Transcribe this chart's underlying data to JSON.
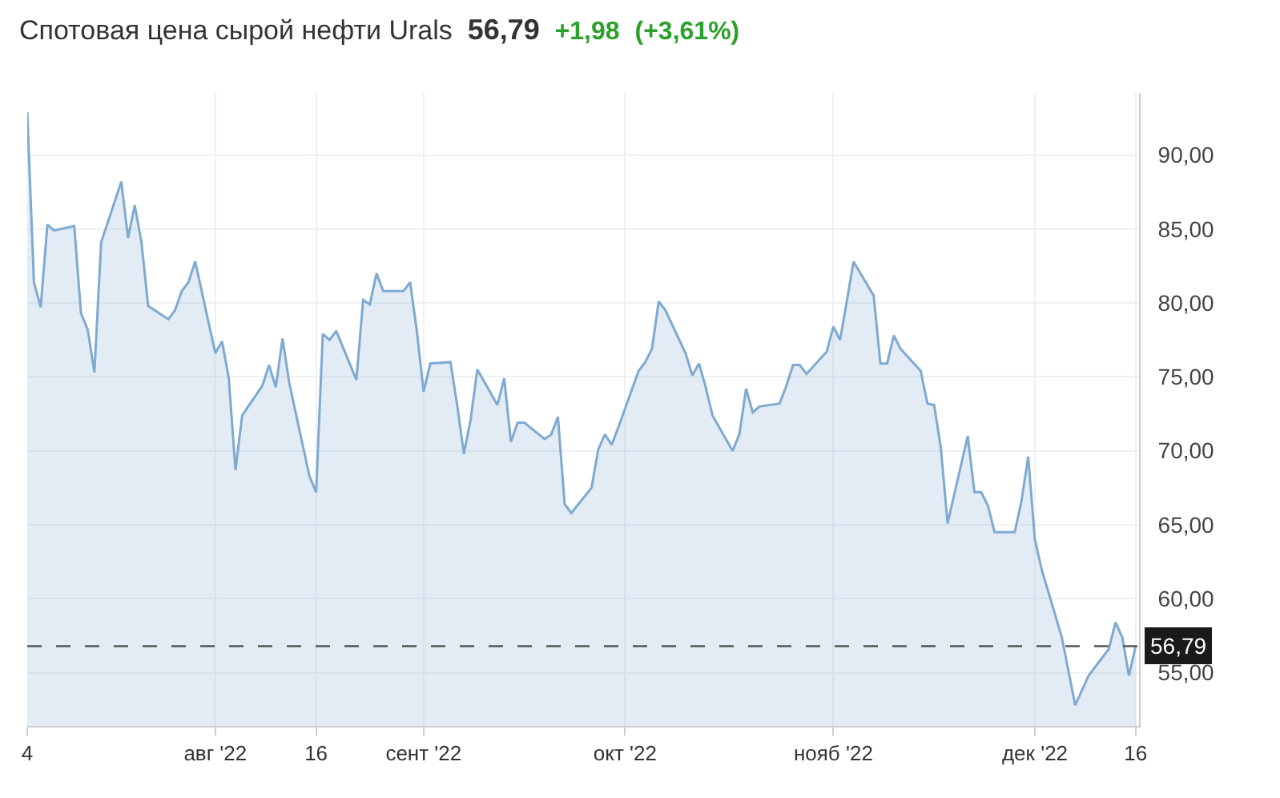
{
  "chart_data": {
    "type": "area",
    "title": "Спотовая цена сырой нефти Urals",
    "annotations": [
      "56,79",
      "+1,98",
      "(+3,61%)"
    ],
    "x": [
      "2022-07-04",
      "2022-07-05",
      "2022-07-06",
      "2022-07-07",
      "2022-07-08",
      "2022-07-11",
      "2022-07-12",
      "2022-07-13",
      "2022-07-14",
      "2022-07-15",
      "2022-07-18",
      "2022-07-19",
      "2022-07-20",
      "2022-07-21",
      "2022-07-22",
      "2022-07-25",
      "2022-07-26",
      "2022-07-27",
      "2022-07-28",
      "2022-07-29",
      "2022-08-01",
      "2022-08-02",
      "2022-08-03",
      "2022-08-04",
      "2022-08-05",
      "2022-08-08",
      "2022-08-09",
      "2022-08-10",
      "2022-08-11",
      "2022-08-12",
      "2022-08-15",
      "2022-08-16",
      "2022-08-17",
      "2022-08-18",
      "2022-08-19",
      "2022-08-22",
      "2022-08-23",
      "2022-08-24",
      "2022-08-25",
      "2022-08-26",
      "2022-08-29",
      "2022-08-30",
      "2022-08-31",
      "2022-09-01",
      "2022-09-02",
      "2022-09-05",
      "2022-09-06",
      "2022-09-07",
      "2022-09-08",
      "2022-09-09",
      "2022-09-12",
      "2022-09-13",
      "2022-09-14",
      "2022-09-15",
      "2022-09-16",
      "2022-09-19",
      "2022-09-20",
      "2022-09-21",
      "2022-09-22",
      "2022-09-23",
      "2022-09-26",
      "2022-09-27",
      "2022-09-28",
      "2022-09-29",
      "2022-09-30",
      "2022-10-03",
      "2022-10-04",
      "2022-10-05",
      "2022-10-06",
      "2022-10-07",
      "2022-10-10",
      "2022-10-11",
      "2022-10-12",
      "2022-10-13",
      "2022-10-14",
      "2022-10-17",
      "2022-10-18",
      "2022-10-19",
      "2022-10-20",
      "2022-10-21",
      "2022-10-24",
      "2022-10-25",
      "2022-10-26",
      "2022-10-27",
      "2022-10-28",
      "2022-10-31",
      "2022-11-01",
      "2022-11-02",
      "2022-11-03",
      "2022-11-04",
      "2022-11-07",
      "2022-11-08",
      "2022-11-09",
      "2022-11-10",
      "2022-11-11",
      "2022-11-14",
      "2022-11-15",
      "2022-11-16",
      "2022-11-17",
      "2022-11-18",
      "2022-11-21",
      "2022-11-22",
      "2022-11-23",
      "2022-11-24",
      "2022-11-25",
      "2022-11-28",
      "2022-11-29",
      "2022-11-30",
      "2022-12-01",
      "2022-12-02",
      "2022-12-05",
      "2022-12-06",
      "2022-12-07",
      "2022-12-08",
      "2022-12-09",
      "2022-12-12",
      "2022-12-13",
      "2022-12-14",
      "2022-12-15",
      "2022-12-16"
    ],
    "series": [
      {
        "color": "#7eaad2",
        "values": [
          92.9,
          81.4,
          79.7,
          85.3,
          84.9,
          85.2,
          79.3,
          78.2,
          75.3,
          84.1,
          88.2,
          84.4,
          86.6,
          84.1,
          79.8,
          78.9,
          79.5,
          80.8,
          81.4,
          82.8,
          76.6,
          77.4,
          74.9,
          68.7,
          72.4,
          74.4,
          75.8,
          74.3,
          77.6,
          74.6,
          68.3,
          67.2,
          77.9,
          77.5,
          78.1,
          74.8,
          80.2,
          79.9,
          82.0,
          80.8,
          80.8,
          81.4,
          78.1,
          74.0,
          75.9,
          76.0,
          73.1,
          69.8,
          72.1,
          75.5,
          73.1,
          74.9,
          70.6,
          71.9,
          71.9,
          70.8,
          71.1,
          72.3,
          66.4,
          65.8,
          67.5,
          70.1,
          71.1,
          70.4,
          71.6,
          75.4,
          76.0,
          76.9,
          80.1,
          79.5,
          76.6,
          75.1,
          75.9,
          74.3,
          72.4,
          70.0,
          71.1,
          74.2,
          72.6,
          73.0,
          73.2,
          74.4,
          75.8,
          75.8,
          75.2,
          76.7,
          78.4,
          77.5,
          80.1,
          82.8,
          80.5,
          75.9,
          75.9,
          77.8,
          76.9,
          75.4,
          73.2,
          73.1,
          70.2,
          65.1,
          71.0,
          67.2,
          67.2,
          66.3,
          64.5,
          64.5,
          66.6,
          69.6,
          64.0,
          62.0,
          57.4,
          55.1,
          52.8,
          53.8,
          54.8,
          56.6,
          58.4,
          57.4,
          54.8,
          56.8
        ]
      }
    ],
    "xlim": [
      "2022-07-04",
      "2022-12-16T12:00"
    ],
    "xticks": [
      {
        "value": "2022-07-04",
        "label": "4"
      },
      {
        "value": "2022-08-01",
        "label": "авг '22"
      },
      {
        "value": "2022-08-16",
        "label": "16"
      },
      {
        "value": "2022-09-01",
        "label": "сент '22"
      },
      {
        "value": "2022-10-01",
        "label": "окт '22"
      },
      {
        "value": "2022-11-01",
        "label": "нояб '22"
      },
      {
        "value": "2022-12-01",
        "label": "дек '22"
      },
      {
        "value": "2022-12-16",
        "label": "16"
      }
    ],
    "ylim": [
      51.4,
      94.2
    ],
    "yticks": [
      {
        "value": 55,
        "label": "55,00"
      },
      {
        "value": 60,
        "label": "60,00"
      },
      {
        "value": 65,
        "label": "65,00"
      },
      {
        "value": 70,
        "label": "70,00"
      },
      {
        "value": 75,
        "label": "75,00"
      },
      {
        "value": 80,
        "label": "80,00"
      },
      {
        "value": 85,
        "label": "85,00"
      },
      {
        "value": 90,
        "label": "90,00"
      }
    ],
    "ref_lines": [
      {
        "axis": "y",
        "value": 56.79,
        "label": "56,79",
        "color": "#555555",
        "line_style": "dashed"
      }
    ],
    "grid": true,
    "marker": "none",
    "line_style": "solid"
  }
}
